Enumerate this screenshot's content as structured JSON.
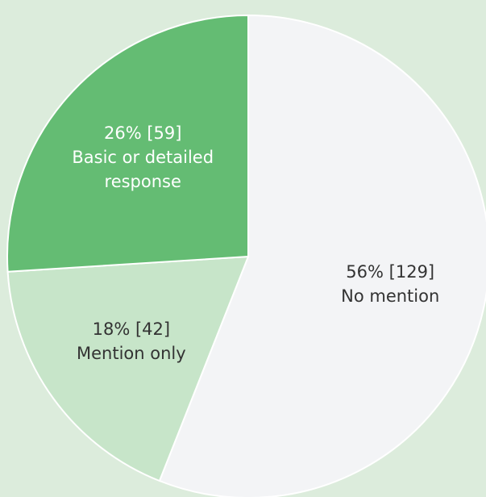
{
  "chart_data": {
    "type": "pie",
    "categories": [
      "No mention",
      "Mention only",
      "Basic or detailed response"
    ],
    "values": [
      56,
      18,
      26
    ],
    "value_labels": [
      "56% [129]",
      "18% [42]",
      "26% [59]"
    ],
    "colors": [
      "#f3f4f6",
      "#c7e5c9",
      "#64bc73"
    ]
  }
}
